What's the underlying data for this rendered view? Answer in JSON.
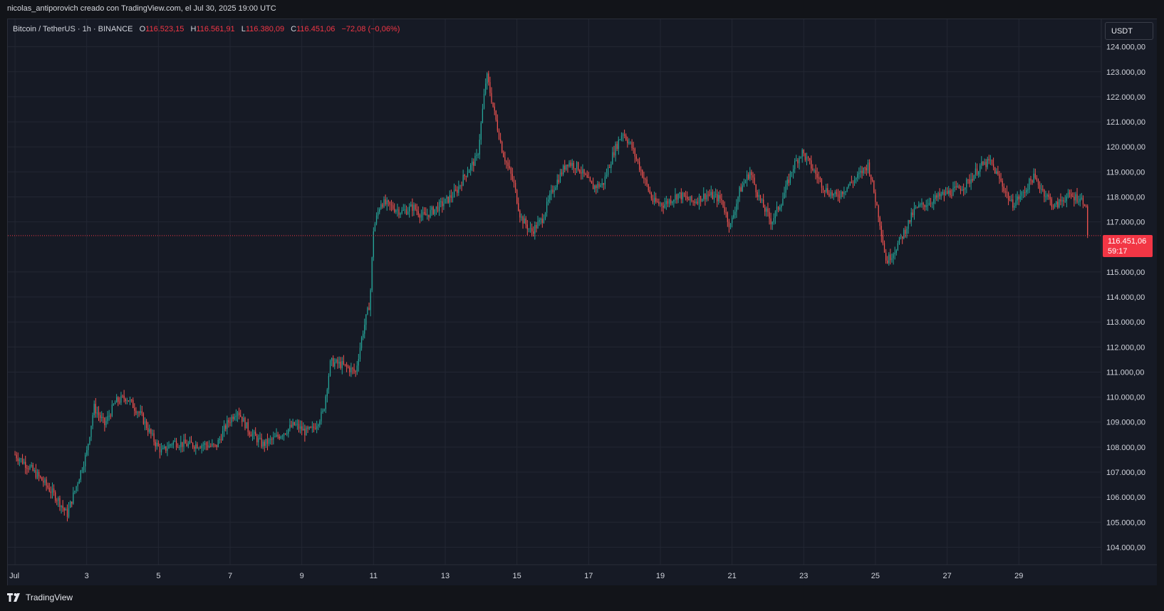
{
  "attribution": "nicolas_antiporovich creado con TradingView.com, el Jul 30, 2025 19:00 UTC",
  "legend": {
    "symbol": "Bitcoin / TetherUS · 1h · BINANCE",
    "o_label": "O",
    "o_value": "116.523,15",
    "h_label": "H",
    "h_value": "116.561,91",
    "l_label": "L",
    "l_value": "116.380,09",
    "c_label": "C",
    "c_value": "116.451,06",
    "change": "−72,08 (−0,06%)"
  },
  "currency": "USDT",
  "price_tag": {
    "price": "116.451,06",
    "countdown": "59:17"
  },
  "logo_text": "TradingView",
  "colors": {
    "up": "#26a69a",
    "down": "#ef5350",
    "price_line": "#f23645",
    "grid": "#232733",
    "text": "#d1d4dc"
  },
  "chart_data": {
    "type": "candlestick",
    "title": "Bitcoin / TetherUS · 1h · BINANCE",
    "interval": "1h",
    "y_tick_labels": [
      "124.000,00",
      "123.000,00",
      "122.000,00",
      "121.000,00",
      "120.000,00",
      "119.000,00",
      "118.000,00",
      "117.000,00",
      "115.000,00",
      "114.000,00",
      "113.000,00",
      "112.000,00",
      "111.000,00",
      "110.000,00",
      "109.000,00",
      "108.000,00",
      "107.000,00",
      "106.000,00",
      "105.000,00",
      "104.000,00"
    ],
    "y_ticks": [
      124000,
      123000,
      122000,
      121000,
      120000,
      119000,
      118000,
      117000,
      115000,
      114000,
      113000,
      112000,
      111000,
      110000,
      109000,
      108000,
      107000,
      106000,
      105000,
      104000
    ],
    "ylim": [
      103300,
      125100
    ],
    "x_tick_labels": [
      "Jul",
      "3",
      "5",
      "7",
      "9",
      "11",
      "13",
      "15",
      "17",
      "19",
      "21",
      "23",
      "25",
      "27",
      "29"
    ],
    "x_ticks_day": [
      1,
      3,
      5,
      7,
      9,
      11,
      13,
      15,
      17,
      19,
      21,
      23,
      25,
      27,
      29
    ],
    "x_range_day": [
      0.8,
      31.3
    ],
    "last_price": 116451.06,
    "price_path": [
      [
        1.0,
        107700
      ],
      [
        1.4,
        107200
      ],
      [
        1.8,
        106600
      ],
      [
        2.2,
        105900
      ],
      [
        2.45,
        105300
      ],
      [
        2.7,
        106400
      ],
      [
        3.0,
        107800
      ],
      [
        3.2,
        109600
      ],
      [
        3.5,
        108900
      ],
      [
        3.8,
        109800
      ],
      [
        4.1,
        110000
      ],
      [
        4.5,
        109300
      ],
      [
        4.9,
        108200
      ],
      [
        5.1,
        107800
      ],
      [
        5.4,
        108200
      ],
      [
        5.8,
        108100
      ],
      [
        6.3,
        108100
      ],
      [
        6.6,
        108000
      ],
      [
        6.9,
        108900
      ],
      [
        7.2,
        109500
      ],
      [
        7.5,
        108700
      ],
      [
        7.9,
        108100
      ],
      [
        8.2,
        108300
      ],
      [
        8.5,
        108600
      ],
      [
        8.8,
        108900
      ],
      [
        9.1,
        108600
      ],
      [
        9.3,
        108700
      ],
      [
        9.6,
        109400
      ],
      [
        9.8,
        111400
      ],
      [
        10.1,
        111300
      ],
      [
        10.5,
        111000
      ],
      [
        10.7,
        112600
      ],
      [
        10.9,
        113800
      ],
      [
        11.0,
        116700
      ],
      [
        11.2,
        117800
      ],
      [
        11.5,
        117600
      ],
      [
        11.8,
        117400
      ],
      [
        12.1,
        117600
      ],
      [
        12.4,
        117200
      ],
      [
        12.7,
        117500
      ],
      [
        13.0,
        117800
      ],
      [
        13.3,
        118200
      ],
      [
        13.6,
        119000
      ],
      [
        13.9,
        119600
      ],
      [
        14.15,
        122900
      ],
      [
        14.35,
        121500
      ],
      [
        14.6,
        119800
      ],
      [
        14.9,
        118600
      ],
      [
        15.1,
        117200
      ],
      [
        15.4,
        116600
      ],
      [
        15.7,
        117100
      ],
      [
        16.0,
        118300
      ],
      [
        16.4,
        119400
      ],
      [
        16.7,
        119200
      ],
      [
        17.1,
        118400
      ],
      [
        17.4,
        118500
      ],
      [
        17.7,
        119800
      ],
      [
        17.95,
        120600
      ],
      [
        18.2,
        120000
      ],
      [
        18.5,
        118900
      ],
      [
        18.8,
        117800
      ],
      [
        19.1,
        117700
      ],
      [
        19.5,
        118100
      ],
      [
        19.9,
        117800
      ],
      [
        20.3,
        118100
      ],
      [
        20.7,
        117900
      ],
      [
        20.95,
        116800
      ],
      [
        21.2,
        118200
      ],
      [
        21.5,
        119000
      ],
      [
        21.8,
        117800
      ],
      [
        22.1,
        117000
      ],
      [
        22.4,
        117900
      ],
      [
        22.7,
        119200
      ],
      [
        22.95,
        119800
      ],
      [
        23.3,
        119000
      ],
      [
        23.6,
        118300
      ],
      [
        23.9,
        118000
      ],
      [
        24.2,
        118400
      ],
      [
        24.5,
        118800
      ],
      [
        24.8,
        119300
      ],
      [
        25.1,
        117200
      ],
      [
        25.3,
        115400
      ],
      [
        25.55,
        115900
      ],
      [
        25.8,
        116600
      ],
      [
        26.1,
        117500
      ],
      [
        26.5,
        117800
      ],
      [
        26.9,
        118100
      ],
      [
        27.3,
        118300
      ],
      [
        27.6,
        118600
      ],
      [
        27.9,
        119200
      ],
      [
        28.2,
        119400
      ],
      [
        28.5,
        118600
      ],
      [
        28.8,
        117700
      ],
      [
        29.1,
        118100
      ],
      [
        29.4,
        118800
      ],
      [
        29.7,
        118200
      ],
      [
        30.0,
        117600
      ],
      [
        30.3,
        118000
      ],
      [
        30.6,
        118000
      ],
      [
        30.85,
        117800
      ],
      [
        30.95,
        116451
      ]
    ]
  }
}
